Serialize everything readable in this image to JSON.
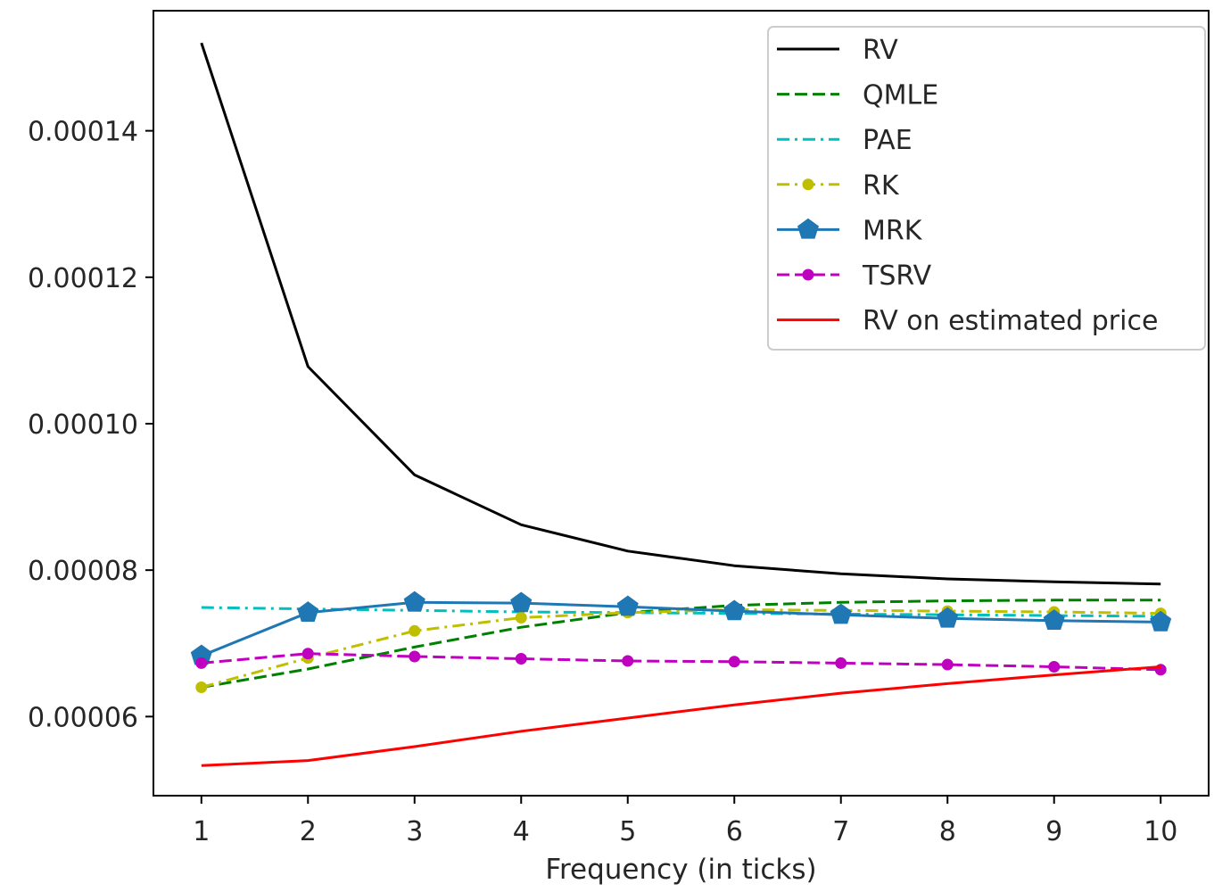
{
  "chart_data": {
    "type": "line",
    "title": "",
    "xlabel": "Frequency (in ticks)",
    "ylabel": "",
    "x": [
      1,
      2,
      3,
      4,
      5,
      6,
      7,
      8,
      9,
      10
    ],
    "xlim": [
      0.55,
      10.45
    ],
    "ylim": [
      4.92e-05,
      0.0001564
    ],
    "x_ticks": [
      1,
      2,
      3,
      4,
      5,
      6,
      7,
      8,
      9,
      10
    ],
    "x_tick_labels": [
      "1",
      "2",
      "3",
      "4",
      "5",
      "6",
      "7",
      "8",
      "9",
      "10"
    ],
    "y_ticks": [
      6e-05,
      8e-05,
      0.0001,
      0.00012,
      0.00014
    ],
    "y_tick_labels": [
      "0.00006",
      "0.00008",
      "0.00010",
      "0.00012",
      "0.00014"
    ],
    "grid": false,
    "legend_position": "top-right",
    "series": [
      {
        "name": "RV",
        "color": "#000000",
        "dash": "solid",
        "marker": "none",
        "values": [
          0.000152,
          0.0001078,
          9.3e-05,
          8.62e-05,
          8.26e-05,
          8.06e-05,
          7.95e-05,
          7.88e-05,
          7.84e-05,
          7.81e-05
        ]
      },
      {
        "name": "QMLE",
        "color": "#008000",
        "dash": "dashed",
        "marker": "none",
        "values": [
          6.4e-05,
          6.65e-05,
          6.95e-05,
          7.22e-05,
          7.42e-05,
          7.52e-05,
          7.56e-05,
          7.58e-05,
          7.59e-05,
          7.59e-05
        ]
      },
      {
        "name": "PAE",
        "color": "#00bfbf",
        "dash": "dashdot",
        "marker": "none",
        "values": [
          7.49e-05,
          7.47e-05,
          7.45e-05,
          7.43e-05,
          7.42e-05,
          7.41e-05,
          7.4e-05,
          7.39e-05,
          7.38e-05,
          7.37e-05
        ]
      },
      {
        "name": "RK",
        "color": "#bfbf00",
        "dash": "dashdot",
        "marker": "dot",
        "values": [
          6.4e-05,
          6.8e-05,
          7.17e-05,
          7.35e-05,
          7.42e-05,
          7.46e-05,
          7.45e-05,
          7.44e-05,
          7.43e-05,
          7.41e-05
        ]
      },
      {
        "name": "MRK",
        "color": "#1f77b4",
        "dash": "solid",
        "marker": "pentagon",
        "values": [
          6.83e-05,
          7.42e-05,
          7.56e-05,
          7.55e-05,
          7.5e-05,
          7.44e-05,
          7.39e-05,
          7.34e-05,
          7.31e-05,
          7.29e-05
        ]
      },
      {
        "name": "TSRV",
        "color": "#bf00bf",
        "dash": "dashed",
        "marker": "dot",
        "values": [
          6.73e-05,
          6.86e-05,
          6.82e-05,
          6.79e-05,
          6.76e-05,
          6.75e-05,
          6.73e-05,
          6.71e-05,
          6.68e-05,
          6.64e-05
        ]
      },
      {
        "name": "RV on estimated price",
        "color": "#ff0000",
        "dash": "solid",
        "marker": "none",
        "values": [
          5.33e-05,
          5.4e-05,
          5.59e-05,
          5.8e-05,
          5.98e-05,
          6.16e-05,
          6.32e-05,
          6.45e-05,
          6.57e-05,
          6.68e-05
        ]
      }
    ]
  }
}
